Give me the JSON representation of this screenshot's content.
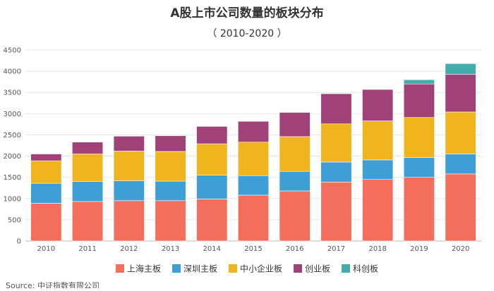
{
  "chart_data": {
    "type": "bar",
    "stacked": true,
    "title": "A股上市公司数量的板块分布",
    "subtitle": "（ 2010-2020 ）",
    "categories": [
      "2010",
      "2011",
      "2012",
      "2013",
      "2014",
      "2015",
      "2016",
      "2017",
      "2018",
      "2019",
      "2020"
    ],
    "series": [
      {
        "name": "上海主板",
        "color": "#F46F5B",
        "values": [
          890,
          930,
          950,
          950,
          990,
          1080,
          1180,
          1390,
          1450,
          1500,
          1580
        ]
      },
      {
        "name": "深圳主板",
        "color": "#3E9ED6",
        "values": [
          470,
          470,
          470,
          460,
          560,
          460,
          460,
          470,
          460,
          470,
          470
        ]
      },
      {
        "name": "中小企业板",
        "color": "#F0B51E",
        "values": [
          530,
          650,
          700,
          700,
          740,
          790,
          820,
          900,
          920,
          940,
          990
        ]
      },
      {
        "name": "创业板",
        "color": "#A04278",
        "values": [
          160,
          280,
          350,
          370,
          410,
          490,
          570,
          710,
          740,
          790,
          890
        ]
      },
      {
        "name": "科创板",
        "color": "#42AEAC",
        "values": [
          0,
          0,
          0,
          0,
          0,
          0,
          0,
          0,
          0,
          100,
          250
        ]
      }
    ],
    "yticks": [
      "0",
      "500",
      "1000",
      "1500",
      "2000",
      "2500",
      "3000",
      "3500",
      "4000",
      "4500"
    ],
    "ylim": [
      0,
      4500
    ],
    "grid": true,
    "legend": "bottom",
    "source": "Source: 中证指数有限公司"
  }
}
